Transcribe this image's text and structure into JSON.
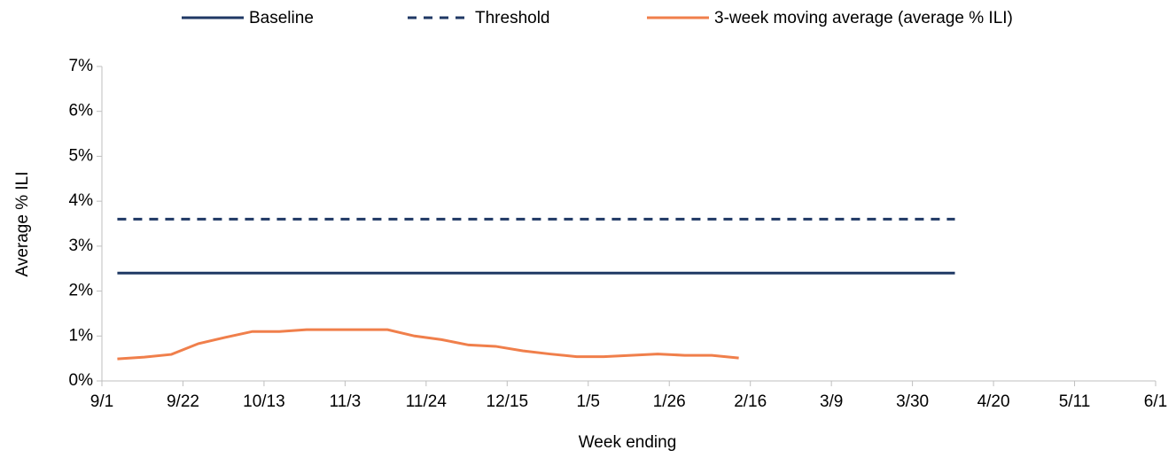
{
  "chart_data": {
    "type": "line",
    "x_label": "Week ending",
    "y_label": "Average % ILI",
    "xlim": [
      0,
      273
    ],
    "xticks": [
      {
        "value": 0,
        "label": "9/1"
      },
      {
        "value": 21,
        "label": "9/22"
      },
      {
        "value": 42,
        "label": "10/13"
      },
      {
        "value": 63,
        "label": "11/3"
      },
      {
        "value": 84,
        "label": "11/24"
      },
      {
        "value": 105,
        "label": "12/15"
      },
      {
        "value": 126,
        "label": "1/5"
      },
      {
        "value": 147,
        "label": "1/26"
      },
      {
        "value": 168,
        "label": "2/16"
      },
      {
        "value": 189,
        "label": "3/9"
      },
      {
        "value": 210,
        "label": "3/30"
      },
      {
        "value": 231,
        "label": "4/20"
      },
      {
        "value": 252,
        "label": "5/11"
      },
      {
        "value": 273,
        "label": "6/1"
      }
    ],
    "ylim": [
      0,
      7
    ],
    "yticks": [
      {
        "value": 0,
        "label": "0%"
      },
      {
        "value": 1,
        "label": "1%"
      },
      {
        "value": 2,
        "label": "2%"
      },
      {
        "value": 3,
        "label": "3%"
      },
      {
        "value": 4,
        "label": "4%"
      },
      {
        "value": 5,
        "label": "5%"
      },
      {
        "value": 6,
        "label": "6%"
      },
      {
        "value": 7,
        "label": "7%"
      }
    ],
    "legend": "top",
    "series": [
      {
        "name": "Baseline",
        "color": "#1f3864",
        "dash": false,
        "x": [
          4,
          221
        ],
        "values": [
          2.4,
          2.4
        ]
      },
      {
        "name": "Threshold",
        "color": "#1f3864",
        "dash": true,
        "x": [
          4,
          221
        ],
        "values": [
          3.6,
          3.6
        ]
      },
      {
        "name": "3-week moving average (average % ILI)",
        "color": "#f07f4b",
        "dash": false,
        "x": [
          4,
          11,
          18,
          25,
          32,
          39,
          46,
          53,
          60,
          67,
          74,
          81,
          88,
          95,
          102,
          109,
          116,
          123,
          130,
          137,
          144,
          151,
          158,
          165
        ],
        "values": [
          0.49,
          0.53,
          0.59,
          0.83,
          0.97,
          1.1,
          1.1,
          1.14,
          1.14,
          1.14,
          1.14,
          1.0,
          0.92,
          0.8,
          0.77,
          0.67,
          0.6,
          0.54,
          0.54,
          0.57,
          0.6,
          0.57,
          0.57,
          0.51
        ]
      }
    ]
  }
}
